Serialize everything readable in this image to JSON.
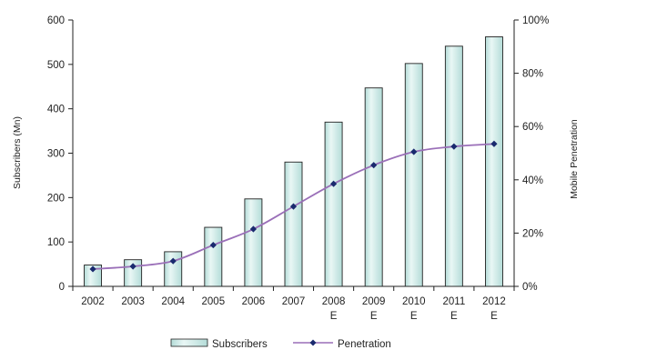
{
  "chart_data": {
    "type": "bar",
    "categories": [
      "2002",
      "2003",
      "2004",
      "2005",
      "2006",
      "2007",
      "2008 E",
      "2009 E",
      "2010 E",
      "2011 E",
      "2012 E"
    ],
    "category_labels": [
      [
        "2002"
      ],
      [
        "2003"
      ],
      [
        "2004"
      ],
      [
        "2005"
      ],
      [
        "2006"
      ],
      [
        "2007"
      ],
      [
        "2008",
        "E"
      ],
      [
        "2009",
        "E"
      ],
      [
        "2010",
        "E"
      ],
      [
        "2011",
        "E"
      ],
      [
        "2012",
        "E"
      ]
    ],
    "series": [
      {
        "name": "Subscribers",
        "type": "bar",
        "axis": "left",
        "values": [
          48,
          60,
          78,
          133,
          197,
          280,
          370,
          447,
          502,
          541,
          562
        ]
      },
      {
        "name": "Penetration",
        "type": "line",
        "axis": "right",
        "values": [
          6.5,
          7.5,
          9.5,
          15.5,
          21.5,
          30,
          38.5,
          45.5,
          50.5,
          52.5,
          53.5
        ]
      }
    ],
    "ylabel": "Subscribers (Mn)",
    "y2label": "Mobile Penetration",
    "ylim": [
      0,
      600
    ],
    "y2lim": [
      0,
      100
    ],
    "yticks": [
      "0",
      "100",
      "200",
      "300",
      "400",
      "500",
      "600"
    ],
    "y2ticks": [
      "0%",
      "20%",
      "40%",
      "60%",
      "80%",
      "100%"
    ],
    "grid": false,
    "legend_position": "bottom",
    "colors": {
      "bar_fill": "#b4dcd8",
      "bar_highlight": "#e9f7f5",
      "bar_stroke": "#222222",
      "line": "#9a6fb8",
      "marker": "#1a2a6e"
    }
  }
}
